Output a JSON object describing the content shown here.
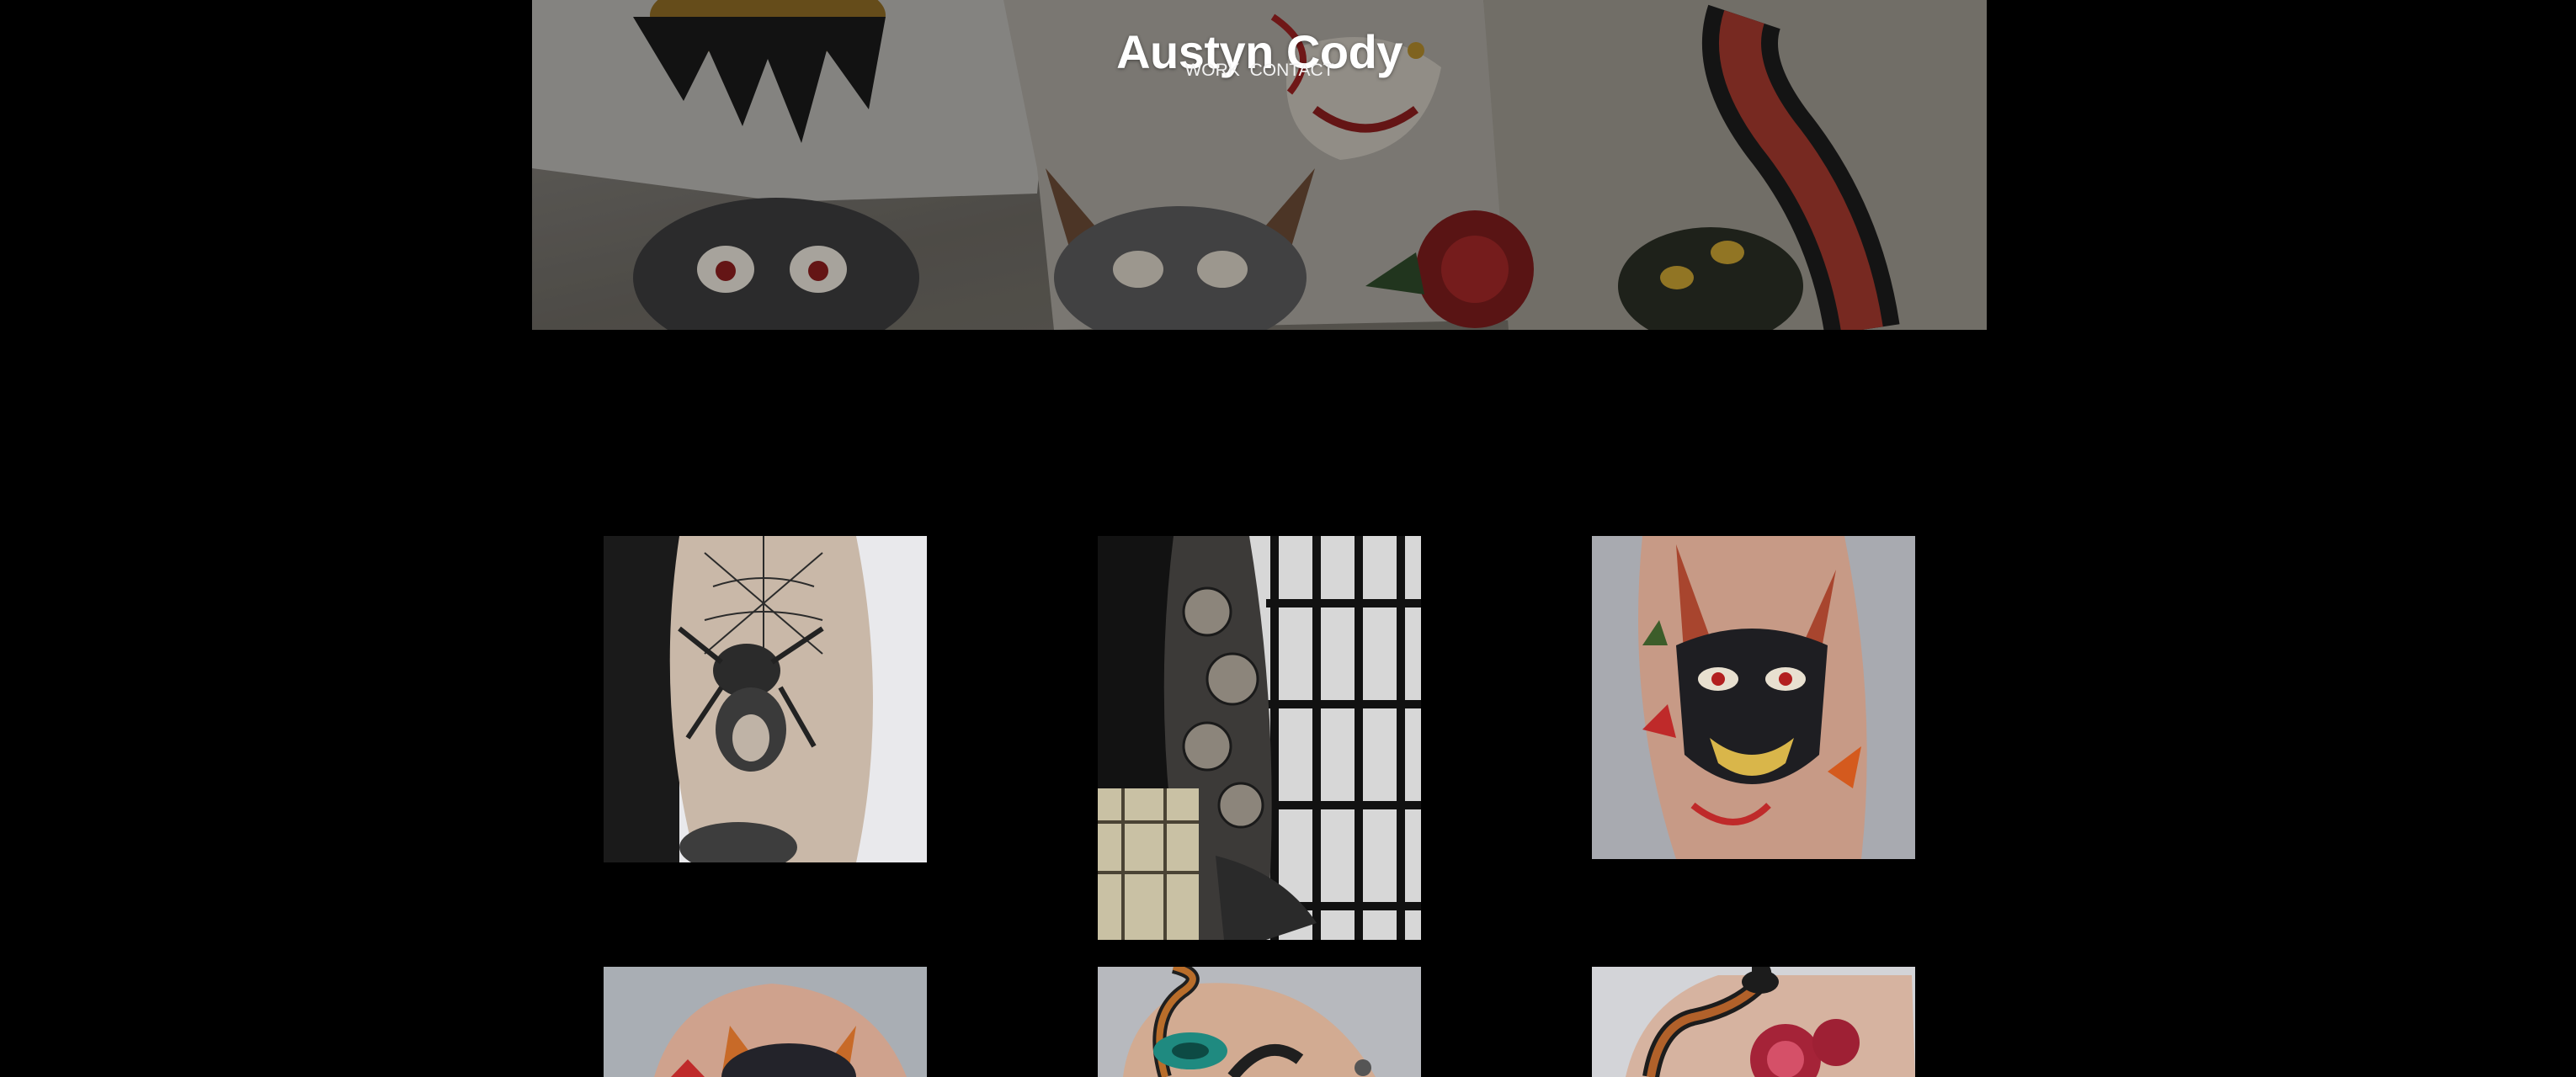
{
  "site": {
    "title": "Austyn Cody"
  },
  "nav": {
    "items": [
      {
        "label": "WORK"
      },
      {
        "label": "CONTACT"
      }
    ]
  },
  "gallery": {
    "tiles": [
      {
        "subject": "spider-geisha-tattoo-icon"
      },
      {
        "subject": "chrysanthemum-sleeve-tattoo-icon"
      },
      {
        "subject": "hannya-mask-tattoo-icon"
      },
      {
        "subject": "oni-mask-tattoo-icon"
      },
      {
        "subject": "snake-dagger-tattoo-icon"
      },
      {
        "subject": "snake-peony-tattoo-icon"
      }
    ]
  },
  "colors": {
    "background": "#000000",
    "title": "#ffffff",
    "nav": "#f2f2f2"
  }
}
